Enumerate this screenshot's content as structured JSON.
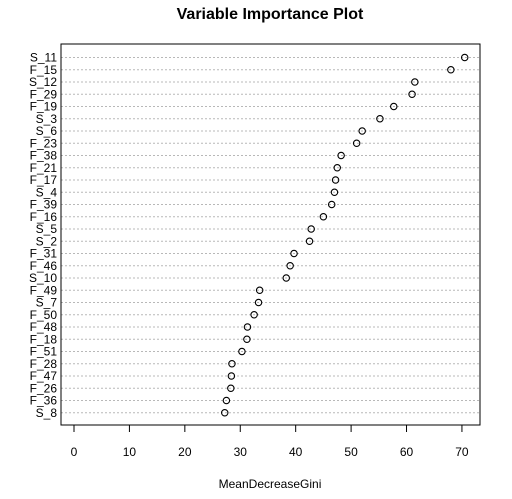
{
  "chart_data": {
    "type": "scatter",
    "title": "Variable Importance Plot",
    "xlabel": "MeanDecreaseGini",
    "ylabel": "",
    "xlim": [
      -2.8,
      72.8
    ],
    "x_ticks": [
      0,
      10,
      20,
      30,
      40,
      50,
      60,
      70
    ],
    "grid": "dotted horizontal lines",
    "marker": "open circle",
    "categories": [
      "S_11",
      "F_15",
      "S_12",
      "F_29",
      "F_19",
      "S_3",
      "S_6",
      "F_23",
      "F_38",
      "F_21",
      "F_17",
      "S_4",
      "F_39",
      "F_16",
      "S_5",
      "S_2",
      "F_31",
      "F_46",
      "S_10",
      "F_49",
      "S_7",
      "F_50",
      "F_48",
      "F_18",
      "F_51",
      "F_28",
      "F_47",
      "F_26",
      "F_36",
      "S_8"
    ],
    "values": [
      70.5,
      68.0,
      61.5,
      61.0,
      57.7,
      55.2,
      52.0,
      51.0,
      48.2,
      47.5,
      47.2,
      47.0,
      46.5,
      45.0,
      42.8,
      42.5,
      39.7,
      39.0,
      38.3,
      33.5,
      33.3,
      32.5,
      31.3,
      31.2,
      30.3,
      28.5,
      28.4,
      28.3,
      27.5,
      27.2
    ]
  }
}
